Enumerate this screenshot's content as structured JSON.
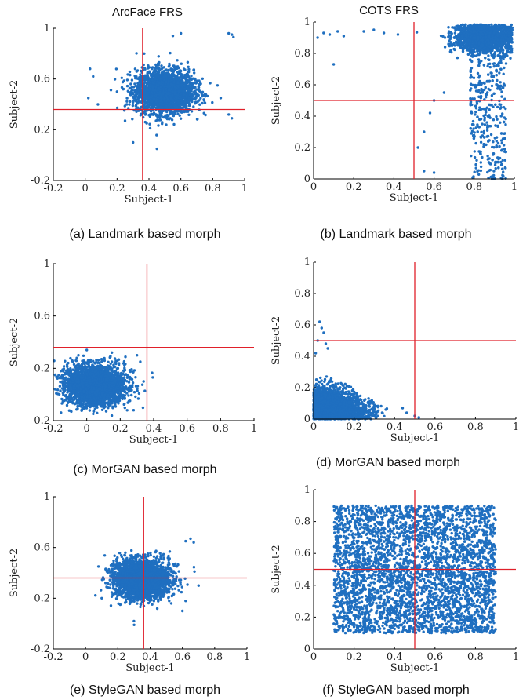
{
  "column_headers": [
    "ArcFace FRS",
    "COTS FRS"
  ],
  "chart_data": [
    {
      "id": "a",
      "type": "scatter",
      "caption": "(a) Landmark based morph",
      "xlabel": "Subject-1",
      "ylabel": "Subject-2",
      "xlim": [
        -0.2,
        1
      ],
      "ylim": [
        -0.2,
        1
      ],
      "xticks": [
        -0.2,
        0,
        0.2,
        0.4,
        0.6,
        0.8,
        1
      ],
      "xticklabels": [
        "-0.2",
        "0",
        "0.2",
        "0.4",
        "0.6",
        "0.8",
        "1"
      ],
      "yticks": [
        -0.2,
        0.2,
        0.6,
        1
      ],
      "yticklabels": [
        "-0.2",
        "0.2",
        "0.6",
        "1"
      ],
      "threshold": {
        "x": 0.36,
        "y": 0.36
      },
      "cluster": {
        "cx": 0.5,
        "cy": 0.5,
        "sx": 0.09,
        "sy": 0.085,
        "n": 2600
      },
      "outliers": [
        [
          0.92,
          0.95
        ],
        [
          0.93,
          0.93
        ],
        [
          0.9,
          0.96
        ],
        [
          0.03,
          0.68
        ],
        [
          0.05,
          0.62
        ],
        [
          0.02,
          0.45
        ],
        [
          0.08,
          0.4
        ],
        [
          0.9,
          0.32
        ],
        [
          0.92,
          0.29
        ],
        [
          0.55,
          0.94
        ],
        [
          0.6,
          0.96
        ],
        [
          0.25,
          0.27
        ],
        [
          0.3,
          0.1
        ],
        [
          0.45,
          0.05
        ],
        [
          0.2,
          0.5
        ],
        [
          0.83,
          0.55
        ],
        [
          0.85,
          0.45
        ],
        [
          0.37,
          0.8
        ]
      ]
    },
    {
      "id": "b",
      "type": "scatter",
      "caption": "(b) Landmark based morph",
      "xlabel": "Subject-1",
      "ylabel": "Subject-2",
      "xlim": [
        0,
        1
      ],
      "ylim": [
        0,
        1
      ],
      "xticks": [
        0,
        0.2,
        0.4,
        0.6,
        0.8,
        1
      ],
      "xticklabels": [
        "0",
        "0.2",
        "0.4",
        "0.6",
        "0.8",
        "1"
      ],
      "yticks": [
        0,
        0.2,
        0.4,
        0.6,
        0.8,
        1
      ],
      "yticklabels": [
        "0",
        "0.2",
        "0.4",
        "0.6",
        "0.8",
        "1"
      ],
      "threshold": {
        "x": 0.5,
        "y": 0.5
      },
      "cluster": {
        "cx": 0.85,
        "cy": 0.9,
        "sx": 0.07,
        "sy": 0.045,
        "n": 2600
      },
      "outliers": [
        [
          0.05,
          0.93
        ],
        [
          0.08,
          0.92
        ],
        [
          0.12,
          0.94
        ],
        [
          0.02,
          0.9
        ],
        [
          0.15,
          0.91
        ],
        [
          0.1,
          0.73
        ],
        [
          0.25,
          0.94
        ],
        [
          0.3,
          0.95
        ],
        [
          0.35,
          0.93
        ],
        [
          0.42,
          0.92
        ],
        [
          0.55,
          0.05
        ],
        [
          0.6,
          0.04
        ],
        [
          0.52,
          0.2
        ],
        [
          0.55,
          0.3
        ],
        [
          0.6,
          0.5
        ],
        [
          0.65,
          0.55
        ],
        [
          0.58,
          0.42
        ]
      ]
    },
    {
      "id": "c",
      "type": "scatter",
      "caption": "(c) MorGAN based morph",
      "xlabel": "Subject-1",
      "ylabel": "Subject-2",
      "xlim": [
        -0.2,
        1
      ],
      "ylim": [
        -0.2,
        1
      ],
      "xticks": [
        -0.2,
        0,
        0.2,
        0.4,
        0.6,
        0.8,
        1
      ],
      "xticklabels": [
        "-0.2",
        "0",
        "0.2",
        "0.4",
        "0.6",
        "0.8",
        "1"
      ],
      "yticks": [
        -0.2,
        0.2,
        0.6,
        1
      ],
      "yticklabels": [
        "-0.2",
        "0.2",
        "0.6",
        "1"
      ],
      "threshold": {
        "x": 0.36,
        "y": 0.36
      },
      "cluster": {
        "cx": 0.05,
        "cy": 0.07,
        "sx": 0.09,
        "sy": 0.075,
        "n": 2600
      },
      "outliers": [
        [
          0.3,
          0.3
        ],
        [
          0.32,
          0.25
        ],
        [
          0.34,
          0.1
        ],
        [
          0.0,
          0.34
        ],
        [
          -0.05,
          0.3
        ],
        [
          0.28,
          -0.12
        ],
        [
          0.15,
          0.32
        ]
      ]
    },
    {
      "id": "d",
      "type": "scatter",
      "caption": "(d) MorGAN based morph",
      "xlabel": "Subject-1",
      "ylabel": "Subject-2",
      "xlim": [
        0,
        1
      ],
      "ylim": [
        0,
        1
      ],
      "xticks": [
        0,
        0.2,
        0.4,
        0.6,
        0.8,
        1
      ],
      "xticklabels": [
        "0",
        "0.2",
        "0.4",
        "0.6",
        "0.8",
        "1"
      ],
      "yticks": [
        0,
        0.2,
        0.4,
        0.6,
        0.8,
        1
      ],
      "yticklabels": [
        "0",
        "0.2",
        "0.4",
        "0.6",
        "0.8",
        "1"
      ],
      "threshold": {
        "x": 0.5,
        "y": 0.5
      },
      "cluster": {
        "cx": 0.0,
        "cy": 0.0,
        "sx": 0.0,
        "sy": 0.0,
        "n": 2600,
        "shape": "triangle",
        "xmax": 0.45,
        "ymax": 0.35
      },
      "outliers": [
        [
          0.03,
          0.62
        ],
        [
          0.04,
          0.58
        ],
        [
          0.05,
          0.55
        ],
        [
          0.02,
          0.5
        ],
        [
          0.06,
          0.48
        ],
        [
          0.01,
          0.42
        ],
        [
          0.07,
          0.45
        ],
        [
          0.46,
          0.04
        ],
        [
          0.44,
          0.07
        ],
        [
          0.5,
          0.02
        ],
        [
          0.52,
          0.01
        ]
      ]
    },
    {
      "id": "e",
      "type": "scatter",
      "caption": "(e) StyleGAN based morph",
      "xlabel": "Subject-1",
      "ylabel": "Subject-2",
      "xlim": [
        -0.2,
        1
      ],
      "ylim": [
        -0.2,
        1
      ],
      "xticks": [
        -0.2,
        0,
        0.2,
        0.4,
        0.6,
        0.8,
        1
      ],
      "xticklabels": [
        "-0.2",
        "0",
        "0.2",
        "0.4",
        "0.6",
        "0.8",
        "1"
      ],
      "yticks": [
        -0.2,
        0.2,
        0.6,
        1
      ],
      "yticklabels": [
        "-0.2",
        "0.2",
        "0.6",
        "1"
      ],
      "threshold": {
        "x": 0.36,
        "y": 0.36
      },
      "cluster": {
        "cx": 0.35,
        "cy": 0.35,
        "sx": 0.085,
        "sy": 0.075,
        "n": 2600
      },
      "outliers": [
        [
          0.62,
          0.65
        ],
        [
          0.65,
          0.67
        ],
        [
          0.67,
          0.64
        ],
        [
          0.6,
          0.1
        ],
        [
          0.1,
          0.2
        ],
        [
          0.08,
          0.45
        ],
        [
          0.7,
          0.3
        ],
        [
          0.3,
          0.02
        ]
      ]
    },
    {
      "id": "f",
      "type": "scatter",
      "caption": "(f) StyleGAN based morph",
      "xlabel": "Subject-1",
      "ylabel": "Subject-2",
      "xlim": [
        0,
        1
      ],
      "ylim": [
        0,
        1
      ],
      "xticks": [
        0,
        0.2,
        0.4,
        0.6,
        0.8,
        1
      ],
      "xticklabels": [
        "0",
        "0.2",
        "0.4",
        "0.6",
        "0.8",
        "1"
      ],
      "yticks": [
        0,
        0.2,
        0.4,
        0.6,
        0.8,
        1
      ],
      "yticklabels": [
        "0",
        "0.2",
        "0.4",
        "0.6",
        "0.8",
        "1"
      ],
      "threshold": {
        "x": 0.5,
        "y": 0.5
      },
      "cluster": {
        "cx": 0.5,
        "cy": 0.5,
        "sx": 0.0,
        "sy": 0.0,
        "n": 3600,
        "shape": "box",
        "xmin": 0.1,
        "xmax": 0.9,
        "ymin": 0.1,
        "ymax": 0.9
      },
      "outliers": []
    }
  ],
  "colors": {
    "points": "#1f6fc0",
    "threshold": "#e0202a"
  }
}
